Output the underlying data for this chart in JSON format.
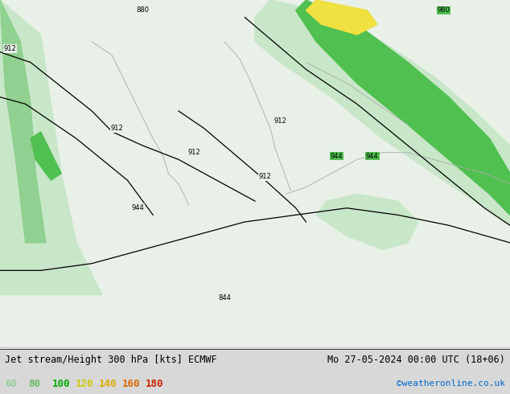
{
  "title_left": "Jet stream/Height 300 hPa [kts] ECMWF",
  "title_right": "Mo 27-05-2024 00:00 UTC (18+06)",
  "credit": "©weatheronline.co.uk",
  "legend_values": [
    60,
    80,
    100,
    120,
    140,
    160,
    180
  ],
  "legend_text_colors": [
    "#99cc99",
    "#66bb66",
    "#00aa00",
    "#cccc00",
    "#ddaa00",
    "#dd6600",
    "#cc2200"
  ],
  "bg_color": "#d8d8d8",
  "figsize": [
    6.34,
    4.9
  ],
  "dpi": 100
}
